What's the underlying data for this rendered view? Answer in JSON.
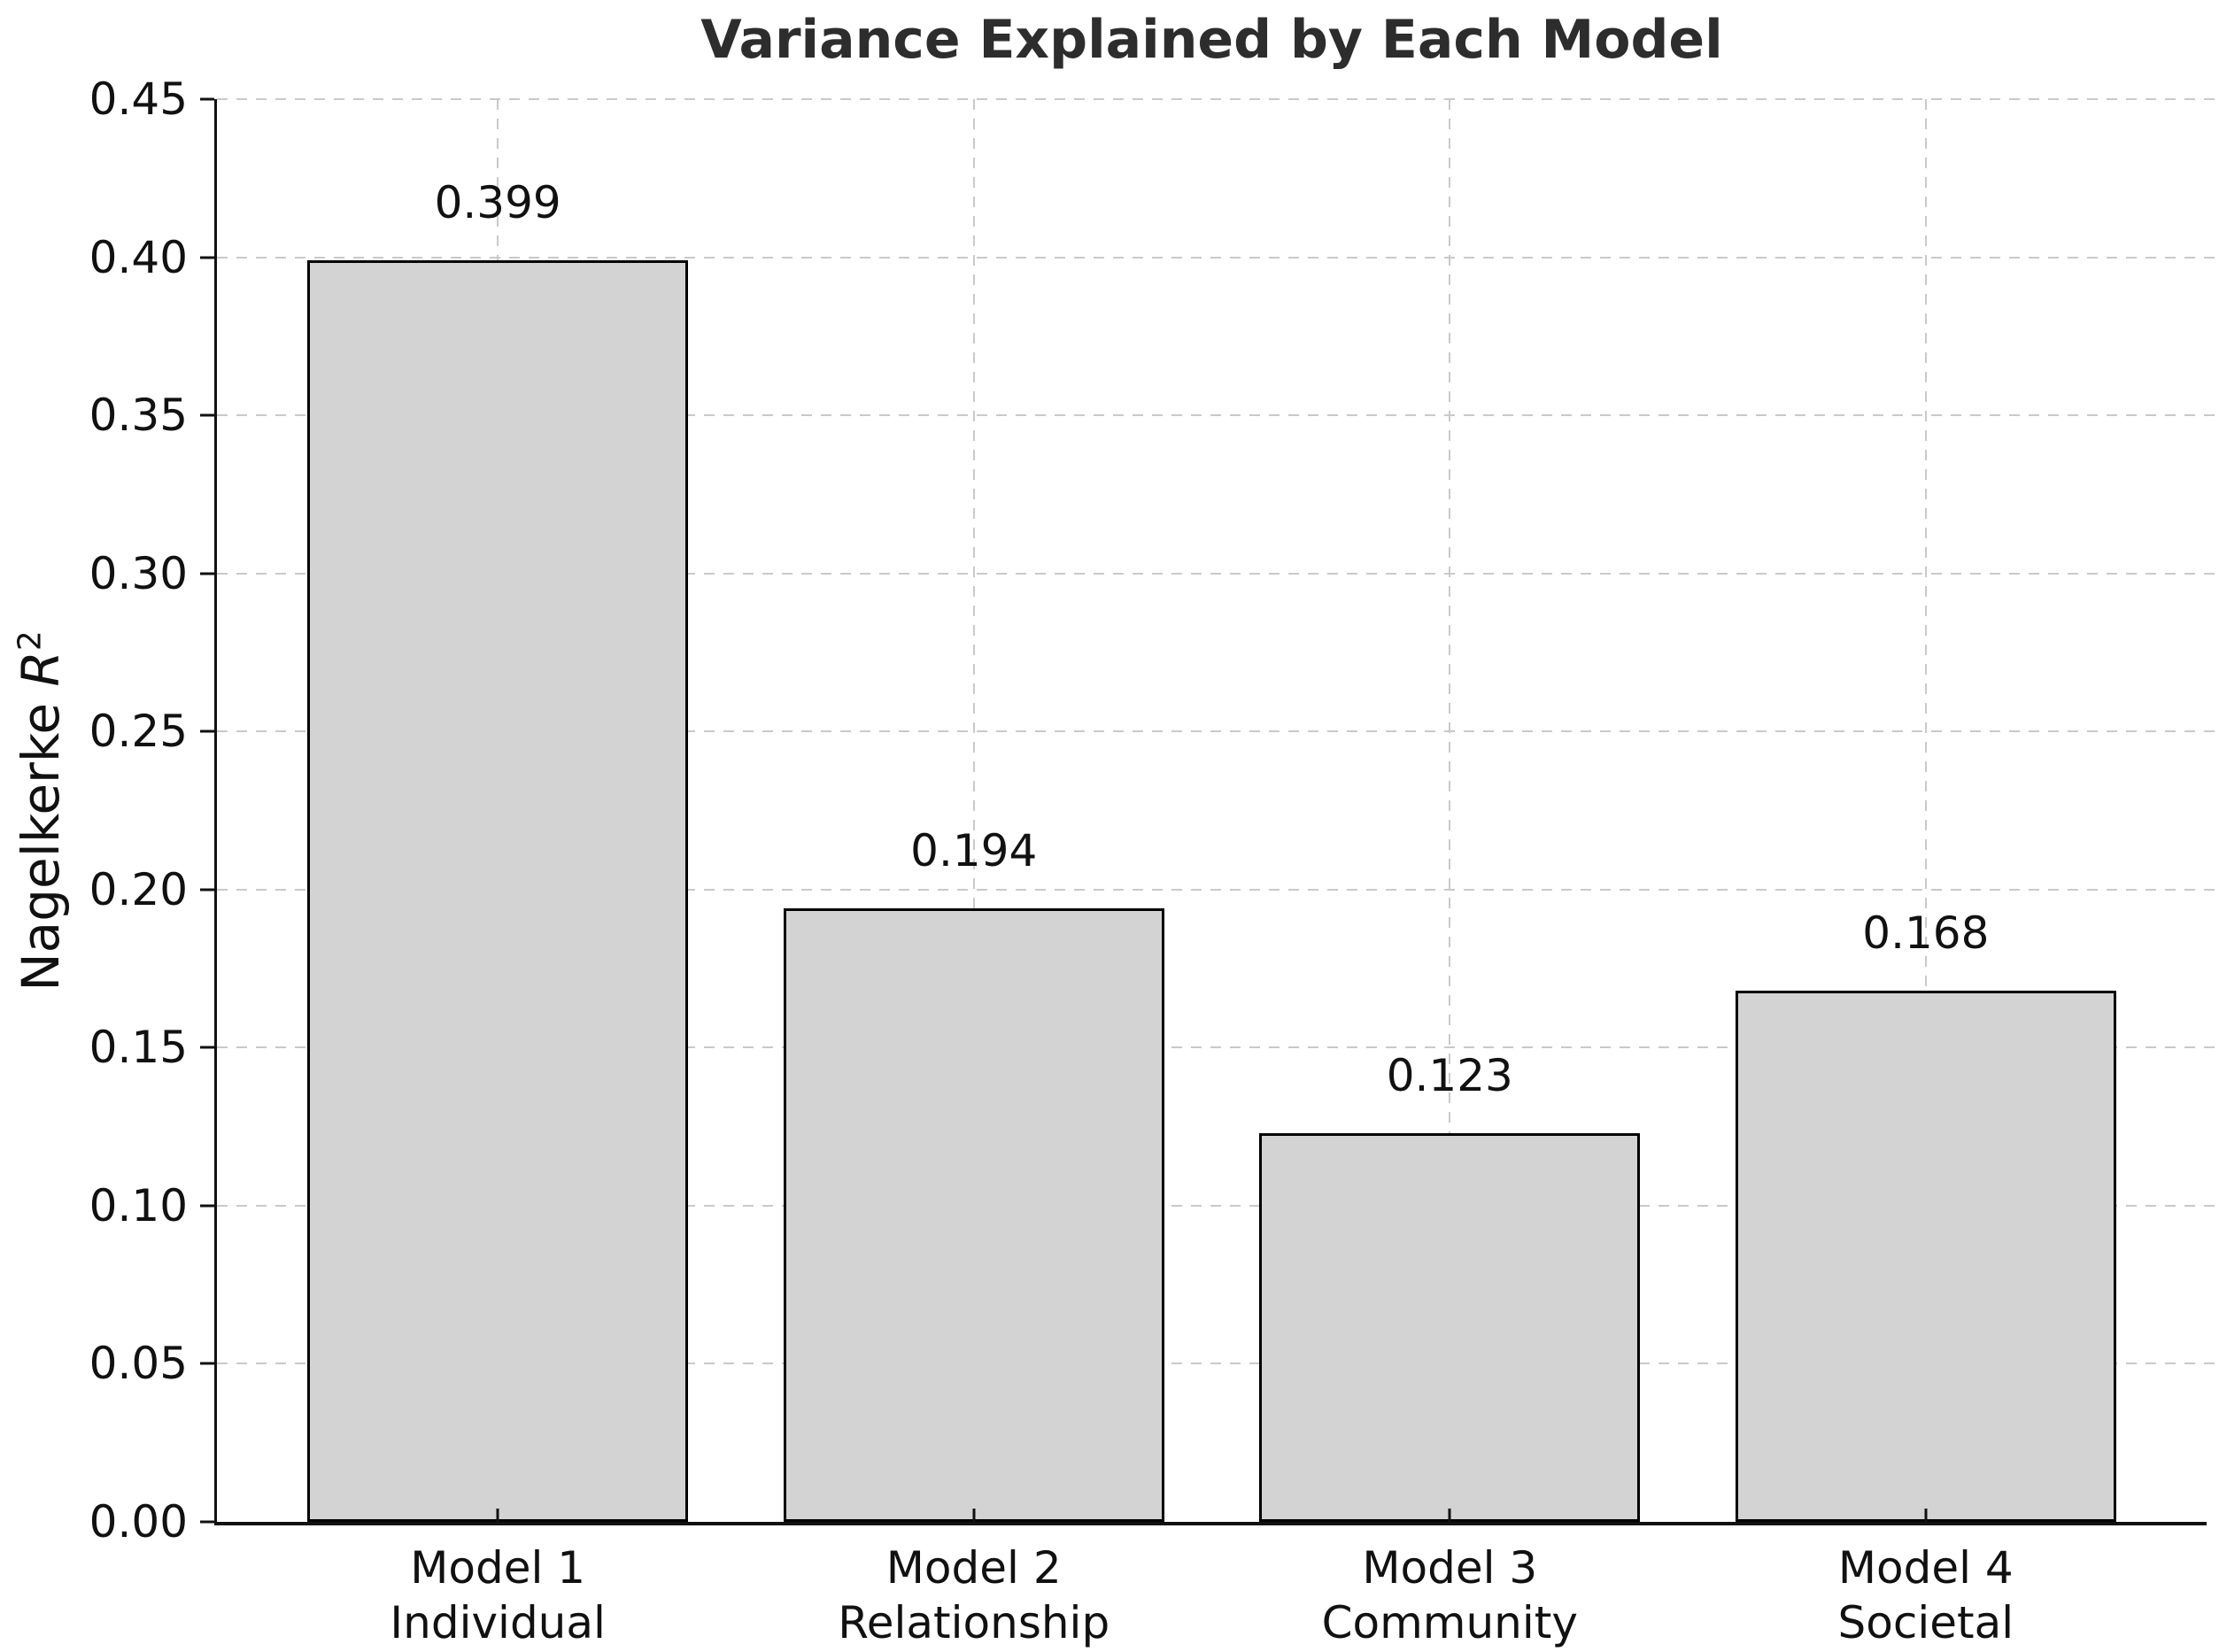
{
  "chart_data": {
    "type": "bar",
    "title": "Variance Explained by Each Model",
    "ylabel": "Nagelkerke R^2",
    "xlabel": "",
    "categories": [
      {
        "label": "Model 1",
        "sublabel": "Individual"
      },
      {
        "label": "Model 2",
        "sublabel": "Relationship"
      },
      {
        "label": "Model 3",
        "sublabel": "Community"
      },
      {
        "label": "Model 4",
        "sublabel": "Societal"
      }
    ],
    "values": [
      0.399,
      0.194,
      0.123,
      0.168
    ],
    "value_labels": [
      "0.399",
      "0.194",
      "0.123",
      "0.168"
    ],
    "ylim": [
      0,
      0.45
    ],
    "ytick_labels": [
      "0.00",
      "0.05",
      "0.10",
      "0.15",
      "0.20",
      "0.25",
      "0.30",
      "0.35",
      "0.40",
      "0.45"
    ],
    "grid": "dashed-both-axes",
    "legend": "none",
    "bar_fill": "#d3d3d3",
    "bar_edge": "#000000"
  },
  "ylabel_parts": {
    "prefix": "Nagelkerke ",
    "symbol": "R",
    "exponent": "2"
  }
}
